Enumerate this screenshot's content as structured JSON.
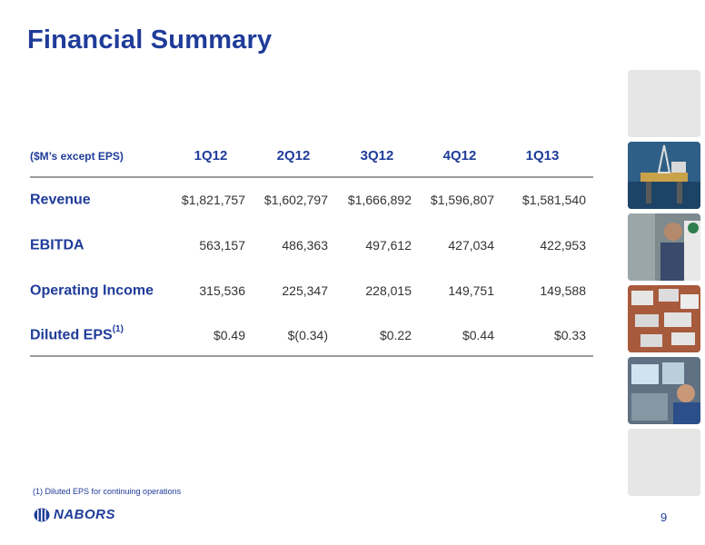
{
  "slide": {
    "title": "Financial Summary",
    "page_number": "9"
  },
  "table": {
    "unit_label": "($M’s except EPS)",
    "columns": [
      "1Q12",
      "2Q12",
      "3Q12",
      "4Q12",
      "1Q13"
    ],
    "rows": [
      {
        "label": "Revenue",
        "sup": "",
        "values": [
          "$1,821,757",
          "$1,602,797",
          "$1,666,892",
          "$1,596,807",
          "$1,581,540"
        ]
      },
      {
        "label": "EBITDA",
        "sup": "",
        "values": [
          "563,157",
          "486,363",
          "497,612",
          "427,034",
          "422,953"
        ]
      },
      {
        "label": "Operating Income",
        "sup": "",
        "values": [
          "315,536",
          "225,347",
          "228,015",
          "149,751",
          "149,588"
        ]
      },
      {
        "label": "Diluted EPS",
        "sup": "(1)",
        "values": [
          "$0.49",
          "$(0.34)",
          "$0.22",
          "$0.44",
          "$0.33"
        ]
      }
    ]
  },
  "footnote": "(1) Diluted EPS for continuing operations",
  "logo": {
    "text": "NABORS"
  },
  "colors": {
    "brand_blue": "#1f3c99",
    "rule_gray": "#9b9b9b"
  }
}
